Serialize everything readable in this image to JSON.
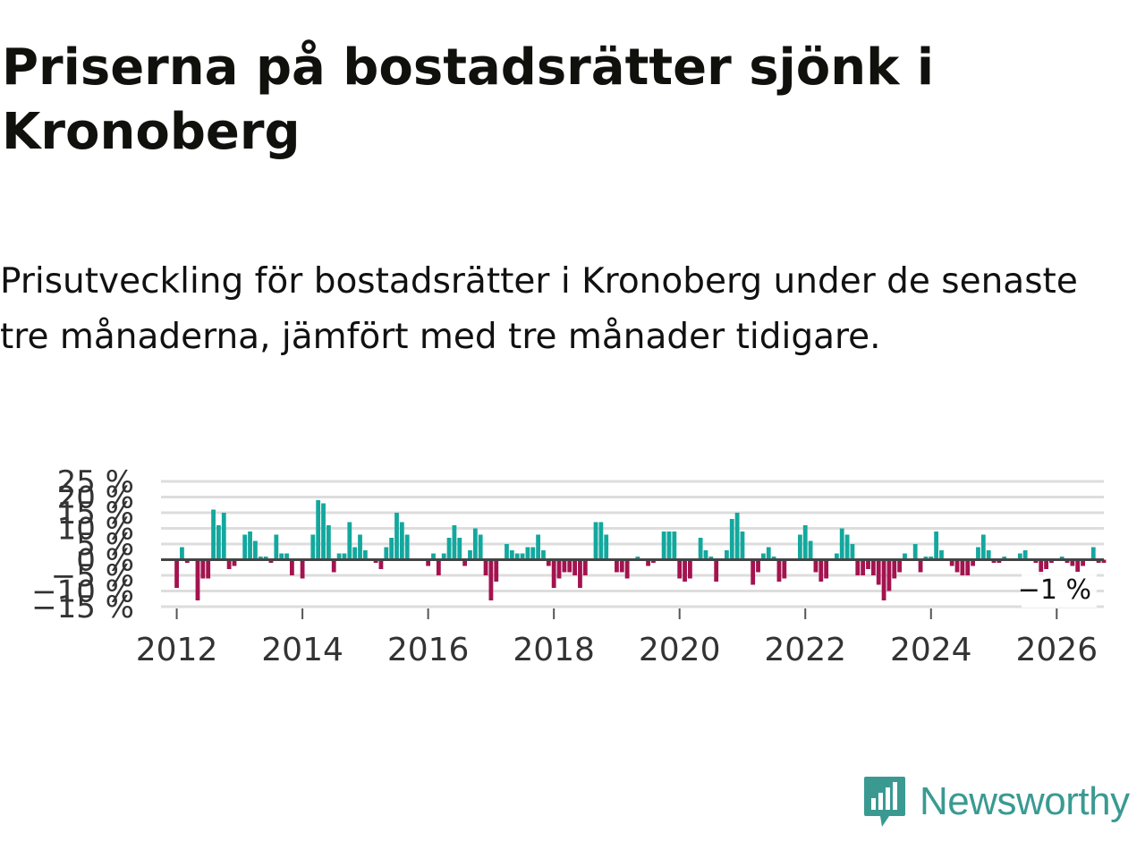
{
  "header": {
    "title": "Priserna på bostadsrätter sjönk i Kronoberg",
    "subtitle": "Prisutveckling för bostadsrätter i Kronoberg under de senaste tre månaderna, jämfört med tre månader tidigare."
  },
  "brand": {
    "name": "Newsworthy",
    "color": "#3a9a92"
  },
  "chart_data": {
    "type": "bar",
    "title": "Priserna på bostadsrätter sjönk i Kronoberg",
    "xlabel": "",
    "ylabel": "",
    "ylim": [
      -15,
      25
    ],
    "xlim": [
      2011.75,
      2026.75
    ],
    "y_ticks": [
      -15,
      -10,
      -5,
      0,
      5,
      10,
      15,
      20,
      25
    ],
    "y_tick_labels": [
      "−15 %",
      "−10 %",
      "−5 %",
      "0 %",
      "5 %",
      "10 %",
      "15 %",
      "20 %",
      "25 %"
    ],
    "x_ticks": [
      2012,
      2014,
      2016,
      2018,
      2020,
      2022,
      2024,
      2026
    ],
    "x_tick_labels": [
      "2012",
      "2014",
      "2016",
      "2018",
      "2020",
      "2022",
      "2024",
      "2026"
    ],
    "grid": true,
    "colors": {
      "positive": "#13a89e",
      "negative": "#a3134f",
      "zero_line": "#444444",
      "grid": "#dddddd",
      "tick_text": "#333333"
    },
    "annotation": {
      "label": "−1 %",
      "value": -1
    },
    "start": {
      "year": 2012,
      "month": 1
    },
    "frequency": "monthly",
    "values": [
      -9,
      4,
      -1,
      0,
      -13,
      -6,
      -6,
      16,
      11,
      15,
      -3,
      -2,
      0,
      8,
      9,
      6,
      1,
      1,
      -1,
      8,
      2,
      2,
      -5,
      0,
      -6,
      0,
      8,
      19,
      18,
      11,
      -4,
      2,
      2,
      12,
      4,
      8,
      3,
      0,
      -1,
      -3,
      4,
      7,
      15,
      12,
      8,
      0,
      0,
      0,
      -2,
      2,
      -5,
      2,
      7,
      11,
      7,
      -2,
      3,
      10,
      8,
      -5,
      -13,
      -7,
      0,
      5,
      3,
      2,
      2,
      4,
      4,
      8,
      3,
      -2,
      -9,
      -6,
      -4,
      -4,
      -5,
      -9,
      -5,
      0,
      12,
      12,
      8,
      0,
      -4,
      -4,
      -6,
      0,
      1,
      0,
      -2,
      -1,
      0,
      9,
      9,
      9,
      -6,
      -7,
      -6,
      0,
      7,
      3,
      1,
      -7,
      0,
      3,
      13,
      15,
      9,
      0,
      -8,
      -4,
      2,
      4,
      1,
      -7,
      -6,
      0,
      0,
      8,
      11,
      6,
      -4,
      -7,
      -6,
      0,
      2,
      10,
      8,
      5,
      -5,
      -5,
      -3,
      -5,
      -8,
      -13,
      -10,
      -6,
      -4,
      2,
      0,
      5,
      -4,
      1,
      1,
      9,
      3,
      0,
      -2,
      -4,
      -5,
      -5,
      -2,
      4,
      8,
      3,
      -1,
      -1,
      1,
      0,
      0,
      2,
      3,
      0,
      -1,
      -5,
      -3,
      -1,
      0,
      1,
      -1,
      -2,
      -4,
      -2,
      0,
      4,
      -1,
      -1
    ]
  }
}
